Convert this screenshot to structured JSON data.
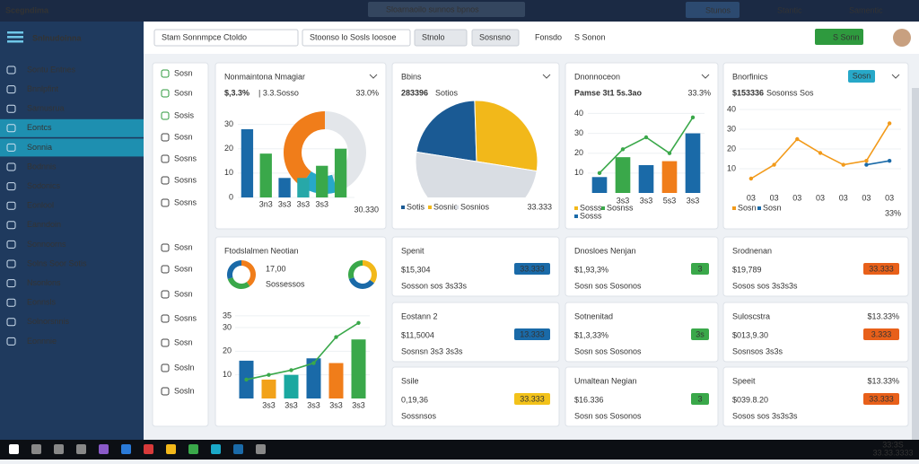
{
  "topbar": {
    "logo": "Scegndima",
    "search": "Sloarnaoilo sunnos bpnos",
    "menu": [
      "Stunos",
      "Stantic",
      "Samentic"
    ]
  },
  "sidebar": {
    "title": "Snlnudoinna",
    "items": [
      "Sontu Entnes",
      "Bnnlpfint",
      "Sarnusrua",
      "Eontcs",
      "Sonnia",
      "Bodnnis",
      "Sodonics",
      "Eonlool",
      "Eanndoin",
      "Sonnoorns",
      "Solns Soor Sotis",
      "Nsonlons",
      "Eonnsls",
      "Solnorsnnis",
      "Eonnnie"
    ],
    "active": [
      3,
      4
    ]
  },
  "toolbar": {
    "tabs": [
      "Stam Sonnmpce Ctoldo",
      "Stoonso lo Sosls Ioosoe",
      "Stnolo",
      "Sosnsno",
      "Fonsdo",
      "S Sonon"
    ],
    "action": "S Sonn"
  },
  "subnav": [
    "Sosn",
    "Sosn",
    "Sosis",
    "Sosn",
    "Sosns",
    "Sosns",
    "Sosns",
    "Sosn",
    "Sosn",
    "Sosn",
    "Sosns",
    "Sosn",
    "Sosln",
    "Sosln"
  ],
  "charts": [
    {
      "type": "bar",
      "title": "Nonmaintona Nmagiar",
      "stat": "$,3.3%",
      "sub": "| 3.3.Sosso",
      "pct": "33.0%",
      "ylim": [
        0,
        35
      ],
      "yticks": [
        0,
        10,
        20,
        30
      ],
      "categories": [
        null,
        "3n3",
        "3s3",
        "3s3",
        "3s3",
        null
      ],
      "values": [
        28,
        18,
        8,
        8,
        13,
        20
      ],
      "colors": [
        "#1a6aa8",
        "#3aa84a",
        "#1a6aa8",
        "#27a8a8",
        "#3aa84a",
        "#3aa84a"
      ],
      "donut": {
        "values": [
          45,
          15,
          40
        ],
        "colors": [
          "#e3e6ea",
          "#27a8c8",
          "#f07d1a"
        ]
      },
      "footer": "30.330"
    },
    {
      "type": "pie",
      "title": "Bbins",
      "stat": "283396",
      "sub": "Sotios",
      "values": [
        22,
        28,
        50
      ],
      "colors": [
        "#1a5a94",
        "#f2b81a",
        "#d9dde3"
      ],
      "categories": [
        "Sotis",
        "Sosnio",
        "Sosnios"
      ],
      "footer": "33.333"
    },
    {
      "type": "bar-line",
      "title": "Dnonnoceon",
      "stat": "Pamse 3t1 5s.3ao",
      "pct": "33.3%",
      "ylim": [
        0,
        42
      ],
      "yticks": [
        10,
        20,
        30,
        40
      ],
      "categories": [
        null,
        "3s3",
        "3s3",
        "5s3",
        "3s3"
      ],
      "values": [
        8,
        18,
        14,
        16,
        30
      ],
      "colors": [
        "#1a6aa8",
        "#3aa84a",
        "#1a6aa8",
        "#f07d1a",
        "#1a6aa8"
      ],
      "line": {
        "color": "#3aa84a",
        "values": [
          10,
          22,
          28,
          20,
          38
        ]
      },
      "legend": [
        {
          "name": "Sosss",
          "color": "#f2b81a"
        },
        {
          "name": "Sosnss",
          "color": "#3aa84a"
        },
        {
          "name": "Sosss",
          "color": "#1a6aa8"
        }
      ]
    },
    {
      "type": "line",
      "title": "Bnorfinics",
      "badge": "Sosn",
      "stat": "$153336",
      "sub": "Sosonss Sos",
      "pct": "33%",
      "ylim": [
        0,
        40
      ],
      "yticks": [
        10,
        20,
        30,
        40
      ],
      "categories": [
        "03",
        "03",
        "03",
        "03",
        "03",
        "03",
        "03"
      ],
      "series": [
        {
          "name": "Sosn",
          "color": "#f29a1a",
          "values": [
            5,
            12,
            25,
            18,
            12,
            14,
            33
          ]
        },
        {
          "name": "Sosn",
          "color": "#1a6aa8",
          "values": [
            null,
            null,
            null,
            null,
            null,
            12,
            14
          ]
        }
      ]
    },
    {
      "type": "bar-line",
      "title": "Ftodslalmen Neotian",
      "stat": "17,00",
      "sub": "Sossessos",
      "ylim": [
        0,
        38
      ],
      "yticks": [
        10,
        20,
        30,
        35
      ],
      "categories": [
        null,
        "3s3",
        "3s3",
        "3s3",
        "3s3",
        "3s3"
      ],
      "values": [
        16,
        8,
        10,
        17,
        15,
        25
      ],
      "colors": [
        "#1a6aa8",
        "#f2a21a",
        "#1aa8a0",
        "#1a6aa8",
        "#f07d1a",
        "#3aa84a"
      ],
      "line": {
        "color": "#3aa84a",
        "values": [
          8,
          10,
          12,
          15,
          26,
          32
        ]
      },
      "donuts": [
        {
          "values": [
            40,
            30,
            30
          ],
          "colors": [
            "#f07d1a",
            "#3aa84a",
            "#1a6aa8"
          ]
        },
        {
          "values": [
            35,
            35,
            30
          ],
          "colors": [
            "#f2b81a",
            "#1a6aa8",
            "#3aa84a"
          ]
        }
      ]
    }
  ],
  "cards": [
    {
      "title": "Spenit",
      "value": "$15,304",
      "color": "#2e9a3e",
      "sub": "Sosson sos 3s33s",
      "badge": "33.333",
      "badge_color": "#1a6aa8"
    },
    {
      "title": "Eostann 2",
      "value": "$11,5004",
      "color": "#2e9a3e",
      "sub": "Sosnsn 3s3 3s3s",
      "badge": "13.333",
      "badge_color": "#1a6aa8"
    },
    {
      "title": "Ssile",
      "value": "0,19,36",
      "color": "#2e9a3e",
      "sub": "Sossnsos",
      "badge": "33.333",
      "badge_color": "#f2c21a"
    },
    {
      "title": "Dnosloes Nenjan",
      "value": "$1,93,3%",
      "color": "#2e9a3e",
      "sub": "Sosn sos Sosonos",
      "badge": "3",
      "badge_color": "#3aa84a"
    },
    {
      "title": "Sotnenitad",
      "value": "$1,3,33%",
      "color": "#e8901a",
      "sub": "Sosn sos Sosonos",
      "badge": "3s",
      "badge_color": "#3aa84a"
    },
    {
      "title": "Umaltean Negian",
      "value": "$16.336",
      "color": "#e8901a",
      "sub": "Sosn sos Sosonos",
      "badge": "3",
      "badge_color": "#3aa84a"
    },
    {
      "title": "Srodnenan",
      "value": "$19,789",
      "color": "#2e9a3e",
      "sub": "Sosos sos 3s3s3s",
      "badge": "33.333",
      "badge_color": "#e8601a"
    },
    {
      "title": "Suloscstra",
      "value": "$013,9.30",
      "color": "#2e9a3e",
      "sub": "Sosnsos 3s3s",
      "badge": "3.333",
      "badge_color": "#e8601a",
      "pct": "$13.33%"
    },
    {
      "title": "Speeit",
      "value": "$039.8.20",
      "color": "#2e9a3e",
      "sub": "Sosos sos 3s3s3s",
      "badge": "33.333",
      "badge_color": "#e8601a",
      "pct": "$13.33%"
    }
  ],
  "clock": [
    "33:3S",
    "33.33.3333"
  ]
}
